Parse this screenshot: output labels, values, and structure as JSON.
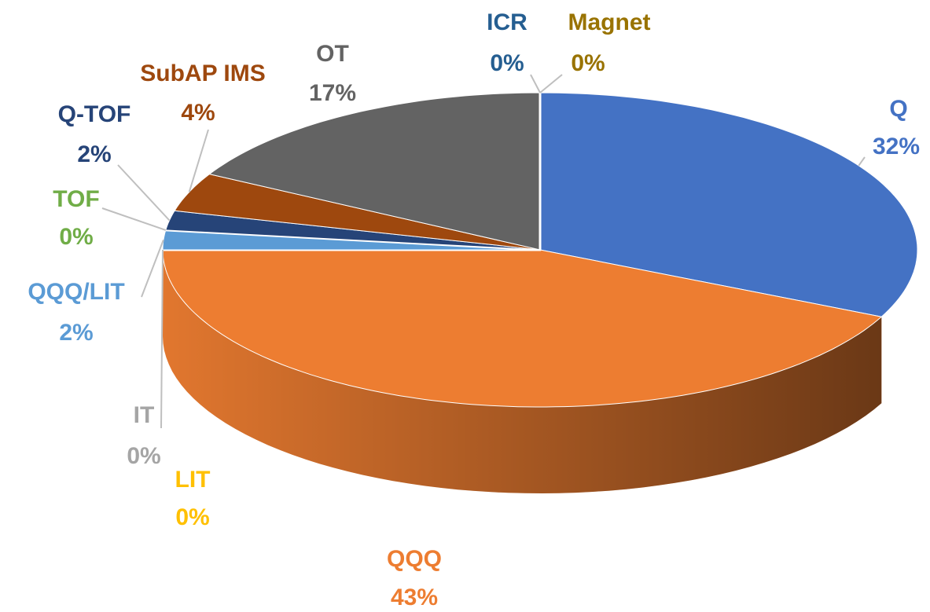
{
  "chart_data": {
    "type": "pie",
    "categories": [
      "Q",
      "QQQ",
      "LIT",
      "IT",
      "QQQ/LIT",
      "TOF",
      "Q-TOF",
      "SubAP IMS",
      "OT",
      "ICR",
      "Magnet"
    ],
    "values": [
      32,
      43,
      0,
      0,
      2,
      0,
      2,
      4,
      17,
      0,
      0
    ],
    "value_labels": [
      "32%",
      "43%",
      "0%",
      "0%",
      "2%",
      "0%",
      "2%",
      "4%",
      "17%",
      "0%",
      "0%"
    ],
    "colors": [
      "#4472c4",
      "#ed7d31",
      "#ffc000",
      "#a5a5a5",
      "#5b9bd5",
      "#70ad47",
      "#264478",
      "#9e480e",
      "#636363",
      "#255e91",
      "#997300"
    ]
  }
}
